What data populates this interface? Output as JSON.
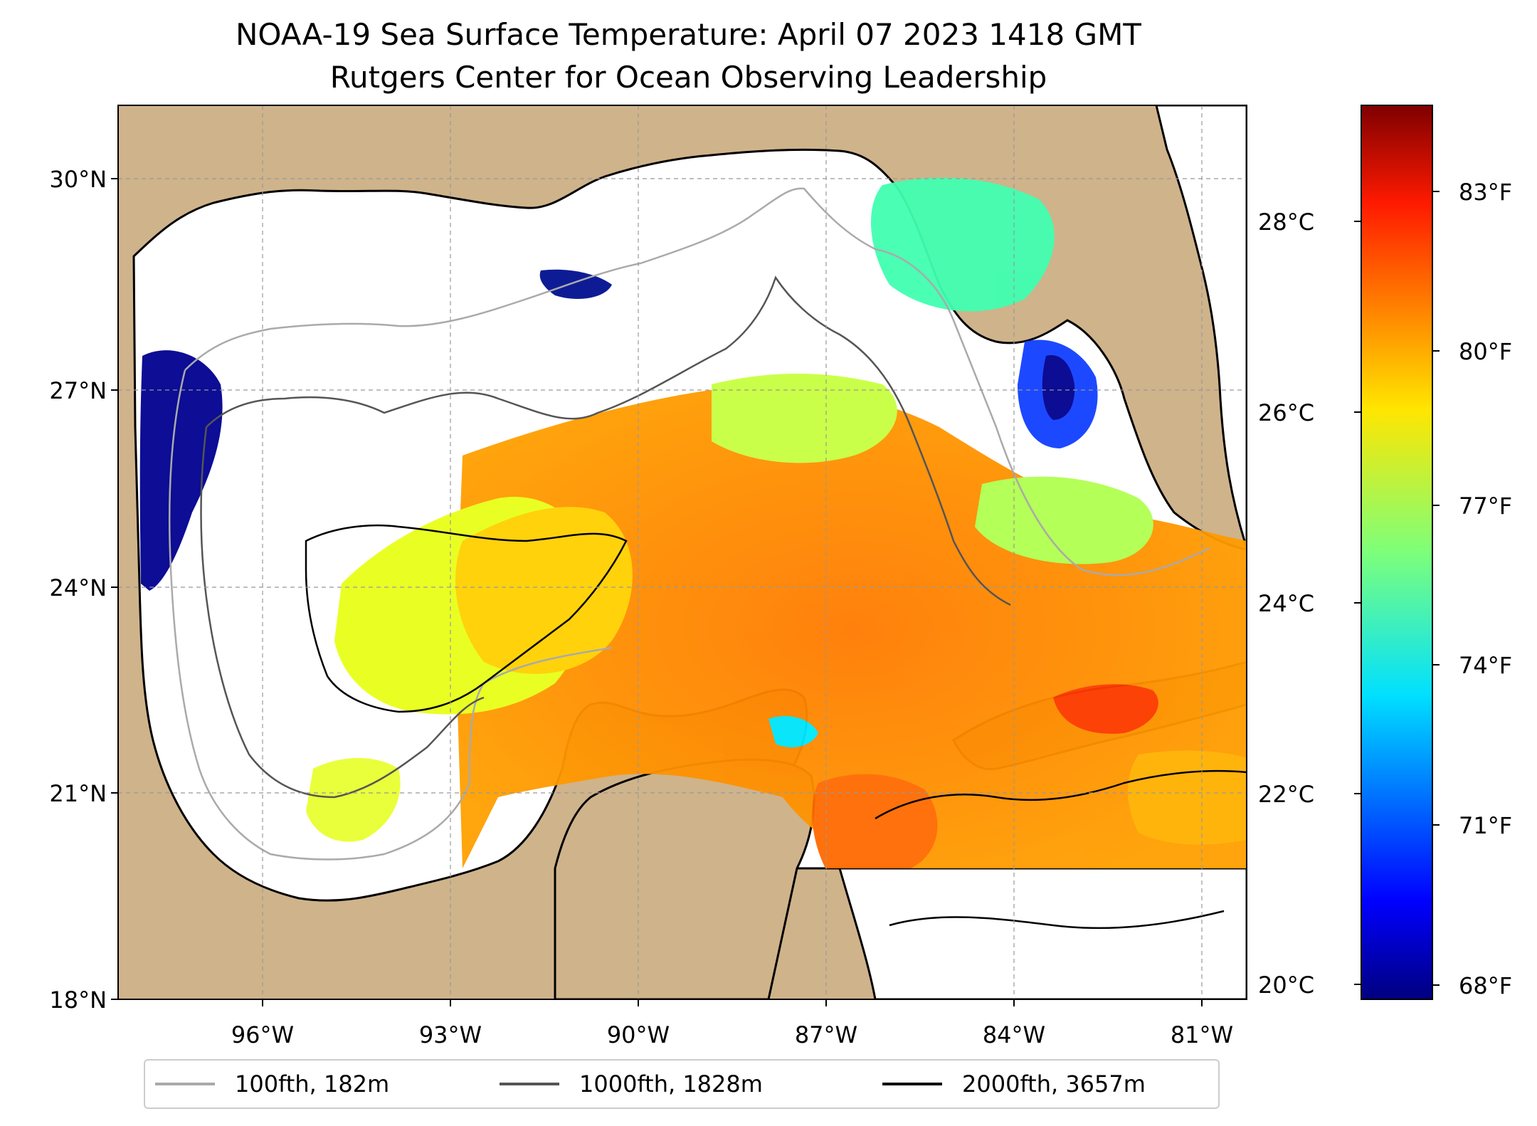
{
  "title": {
    "line1": "NOAA-19 Sea Surface Temperature: April 07 2023 1418 GMT",
    "line2": "Rutgers Center for Ocean Observing Leadership"
  },
  "map": {
    "lon_range": [
      -98,
      -80
    ],
    "lat_range": [
      18,
      31
    ],
    "land_color": "#cfb38b",
    "grid": true,
    "lat_ticks": [
      {
        "value": 18,
        "label": "18°N"
      },
      {
        "value": 21,
        "label": "21°N"
      },
      {
        "value": 24,
        "label": "24°N"
      },
      {
        "value": 27,
        "label": "27°N"
      },
      {
        "value": 30,
        "label": "30°N"
      }
    ],
    "lon_ticks": [
      {
        "value": -96,
        "label": "96°W"
      },
      {
        "value": -93,
        "label": "93°W"
      },
      {
        "value": -90,
        "label": "90°W"
      },
      {
        "value": -87,
        "label": "87°W"
      },
      {
        "value": -84,
        "label": "84°W"
      },
      {
        "value": -81,
        "label": "81°W"
      }
    ]
  },
  "colorbar": {
    "colormap": "jet",
    "celsius_ticks": [
      {
        "value": 20,
        "label": "20°C"
      },
      {
        "value": 22,
        "label": "22°C"
      },
      {
        "value": 24,
        "label": "24°C"
      },
      {
        "value": 26,
        "label": "26°C"
      },
      {
        "value": 28,
        "label": "28°C"
      }
    ],
    "fahrenheit_ticks": [
      {
        "value": 68,
        "label": "68°F"
      },
      {
        "value": 71,
        "label": "71°F"
      },
      {
        "value": 74,
        "label": "74°F"
      },
      {
        "value": 77,
        "label": "77°F"
      },
      {
        "value": 80,
        "label": "80°F"
      },
      {
        "value": 83,
        "label": "83°F"
      }
    ]
  },
  "legend": {
    "items": [
      {
        "label": "100fth, 182m",
        "color": "#aaaaaa"
      },
      {
        "label": "1000fth, 1828m",
        "color": "#555555"
      },
      {
        "label": "2000fth, 3657m",
        "color": "#000000"
      }
    ]
  }
}
